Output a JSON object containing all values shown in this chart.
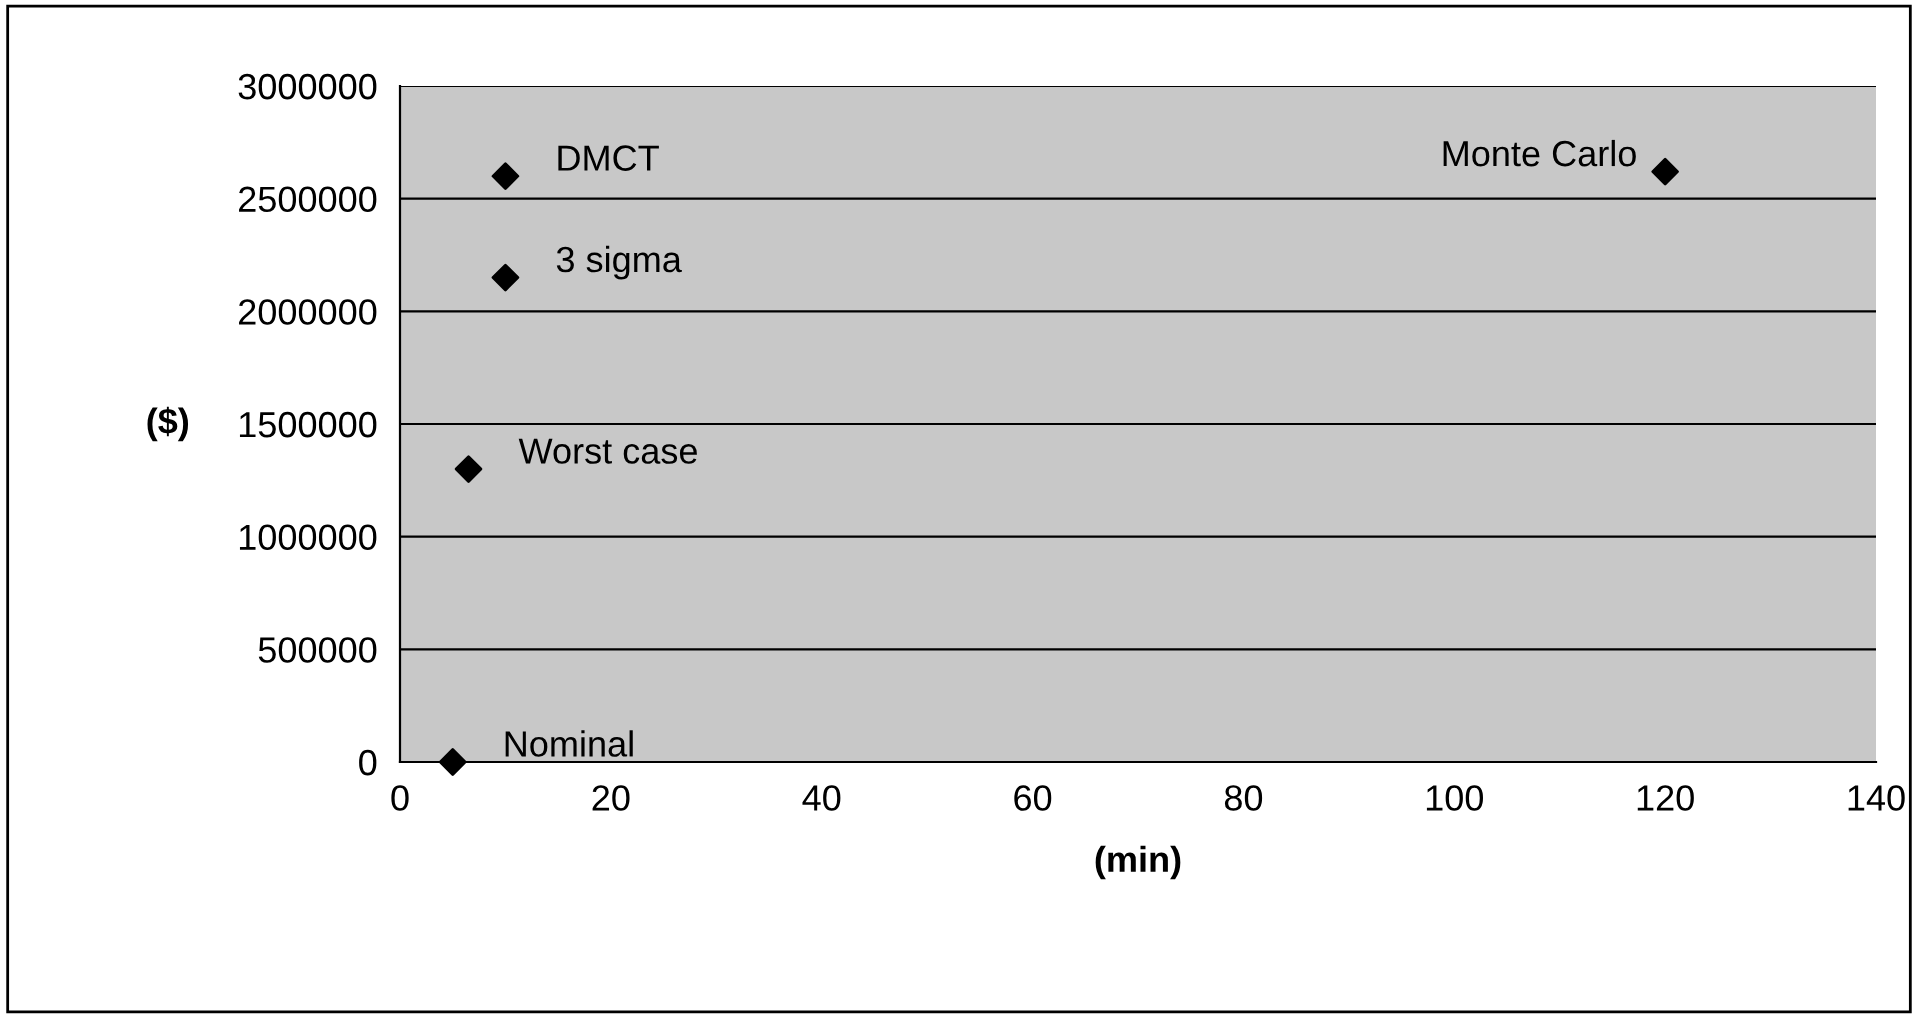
{
  "chart_data": {
    "type": "scatter",
    "xlabel": "(min)",
    "ylabel": "($)",
    "x": [
      5,
      6.5,
      10,
      10,
      120
    ],
    "series": [
      {
        "color": "#000000",
        "values": [
          0,
          1300000,
          2150000,
          2600000,
          2620000
        ]
      }
    ],
    "annotations": [
      {
        "text": "Nominal",
        "x": 5,
        "y": 0
      },
      {
        "text": "Worst case",
        "x": 6.5,
        "y": 1300000
      },
      {
        "text": "3 sigma",
        "x": 10,
        "y": 2150000
      },
      {
        "text": "DMCT",
        "x": 10,
        "y": 2600000
      },
      {
        "text": "Monte Carlo",
        "x": 120,
        "y": 2620000
      }
    ],
    "xlim": [
      0,
      140
    ],
    "xticks": [
      0,
      20,
      40,
      60,
      80,
      100,
      120,
      140
    ],
    "ylim": [
      0,
      3000000
    ],
    "yticks": [
      0,
      500000,
      1000000,
      1500000,
      2000000,
      2500000,
      3000000
    ],
    "grid": "y",
    "marker": "diamond"
  }
}
